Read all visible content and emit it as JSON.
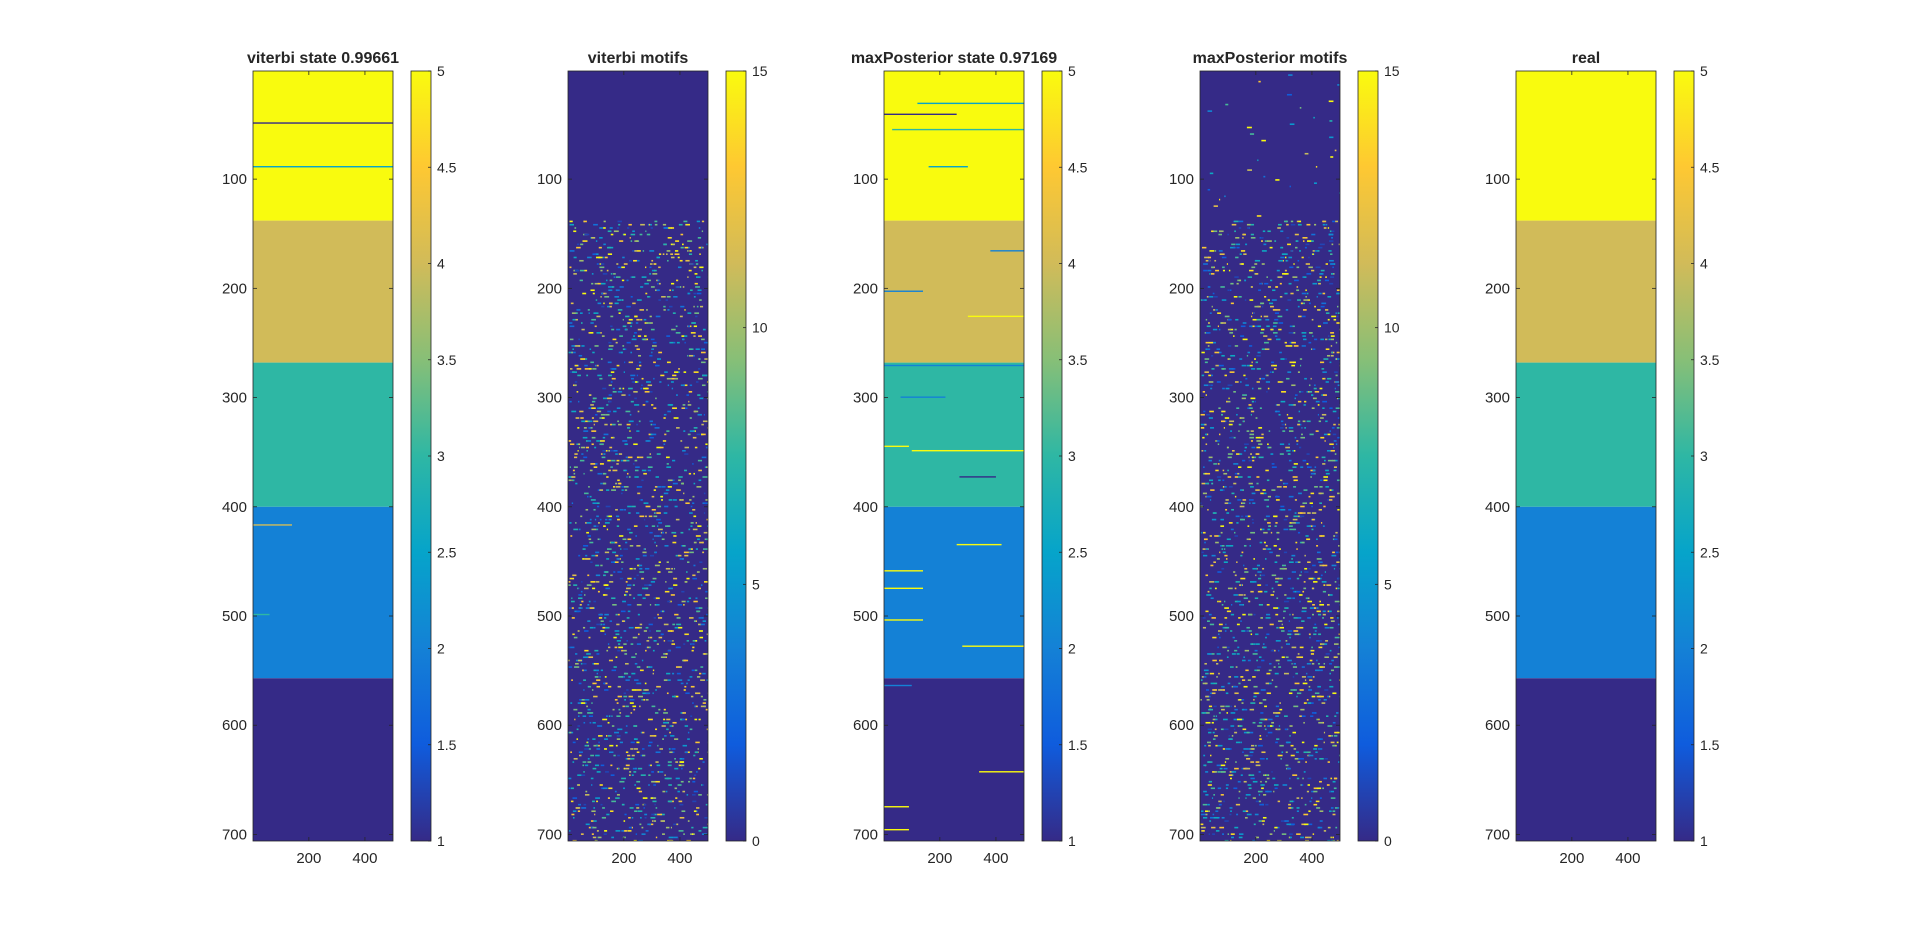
{
  "figure": {
    "background": "#ffffff"
  },
  "colormap": {
    "name": "parula",
    "stops": [
      "#352a87",
      "#0f5cdd",
      "#1481d6",
      "#06a4ca",
      "#2eb7a4",
      "#87bf77",
      "#d1bb59",
      "#fec832",
      "#f9fb0e"
    ]
  },
  "chart_data": [
    {
      "type": "heatmap",
      "title": "viterbi state 0.99661",
      "xlabel": "",
      "ylabel": "",
      "xlim": [
        1,
        500
      ],
      "ylim": [
        1,
        706
      ],
      "xticks": [
        200,
        400
      ],
      "yticks": [
        100,
        200,
        300,
        400,
        500,
        600,
        700
      ],
      "clim": [
        1,
        5
      ],
      "colorbar_ticks": [
        1,
        1.5,
        2,
        2.5,
        3,
        3.5,
        4,
        4.5,
        5
      ],
      "colorbar_ticklabels": [
        "1",
        "1.5",
        "2",
        "2.5",
        "3",
        "3.5",
        "4",
        "4.5",
        "5"
      ],
      "bands": [
        {
          "rows": [
            1,
            138
          ],
          "value": 5
        },
        {
          "rows": [
            138,
            268
          ],
          "value": 4
        },
        {
          "rows": [
            268,
            400
          ],
          "value": 3
        },
        {
          "rows": [
            400,
            557
          ],
          "value": 2
        },
        {
          "rows": [
            557,
            706
          ],
          "value": 1
        }
      ],
      "streaks": [
        {
          "row": 48,
          "x": [
            1,
            500
          ],
          "value": 1
        },
        {
          "row": 88,
          "x": [
            1,
            500
          ],
          "value": 2.5
        },
        {
          "row": 416,
          "x": [
            1,
            140
          ],
          "value": 4
        },
        {
          "row": 498,
          "x": [
            1,
            60
          ],
          "value": 3
        }
      ]
    },
    {
      "type": "heatmap",
      "title": "viterbi motifs",
      "xlabel": "",
      "ylabel": "",
      "xlim": [
        1,
        500
      ],
      "ylim": [
        1,
        706
      ],
      "xticks": [
        200,
        400
      ],
      "yticks": [
        100,
        200,
        300,
        400,
        500,
        600,
        700
      ],
      "clim": [
        0,
        15
      ],
      "colorbar_ticks": [
        0,
        5,
        10,
        15
      ],
      "colorbar_ticklabels": [
        "0",
        "5",
        "10",
        "15"
      ],
      "background_value": 0,
      "sparse_region": {
        "rows": [
          1,
          138
        ],
        "density": 0.01
      },
      "dense_region": {
        "rows": [
          138,
          706
        ],
        "density": 0.45
      }
    },
    {
      "type": "heatmap",
      "title": "maxPosterior state 0.97169",
      "xlabel": "",
      "ylabel": "",
      "xlim": [
        1,
        500
      ],
      "ylim": [
        1,
        706
      ],
      "xticks": [
        200,
        400
      ],
      "yticks": [
        100,
        200,
        300,
        400,
        500,
        600,
        700
      ],
      "clim": [
        1,
        5
      ],
      "colorbar_ticks": [
        1,
        1.5,
        2,
        2.5,
        3,
        3.5,
        4,
        4.5,
        5
      ],
      "colorbar_ticklabels": [
        "1",
        "1.5",
        "2",
        "2.5",
        "3",
        "3.5",
        "4",
        "4.5",
        "5"
      ],
      "bands": [
        {
          "rows": [
            1,
            138
          ],
          "value": 5
        },
        {
          "rows": [
            138,
            268
          ],
          "value": 4
        },
        {
          "rows": [
            268,
            400
          ],
          "value": 3
        },
        {
          "rows": [
            400,
            557
          ],
          "value": 2
        },
        {
          "rows": [
            557,
            706
          ],
          "value": 1
        }
      ],
      "streaks": [
        {
          "row": 30,
          "x": [
            120,
            500
          ],
          "value": 2.5
        },
        {
          "row": 40,
          "x": [
            1,
            260
          ],
          "value": 1
        },
        {
          "row": 54,
          "x": [
            30,
            500
          ],
          "value": 3
        },
        {
          "row": 88,
          "x": [
            160,
            300
          ],
          "value": 2.5
        },
        {
          "row": 165,
          "x": [
            380,
            500
          ],
          "value": 2
        },
        {
          "row": 202,
          "x": [
            1,
            140
          ],
          "value": 2
        },
        {
          "row": 225,
          "x": [
            300,
            500
          ],
          "value": 5
        },
        {
          "row": 270,
          "x": [
            1,
            500
          ],
          "value": 2
        },
        {
          "row": 299,
          "x": [
            60,
            220
          ],
          "value": 2
        },
        {
          "row": 344,
          "x": [
            1,
            90
          ],
          "value": 5
        },
        {
          "row": 348,
          "x": [
            100,
            500
          ],
          "value": 5
        },
        {
          "row": 372,
          "x": [
            270,
            400
          ],
          "value": 1
        },
        {
          "row": 434,
          "x": [
            260,
            420
          ],
          "value": 5
        },
        {
          "row": 458,
          "x": [
            1,
            140
          ],
          "value": 5
        },
        {
          "row": 474,
          "x": [
            1,
            140
          ],
          "value": 5
        },
        {
          "row": 503,
          "x": [
            1,
            140
          ],
          "value": 5
        },
        {
          "row": 527,
          "x": [
            280,
            500
          ],
          "value": 5
        },
        {
          "row": 563,
          "x": [
            1,
            100
          ],
          "value": 2
        },
        {
          "row": 642,
          "x": [
            340,
            500
          ],
          "value": 5
        },
        {
          "row": 674,
          "x": [
            1,
            90
          ],
          "value": 5
        },
        {
          "row": 695,
          "x": [
            1,
            90
          ],
          "value": 5
        }
      ]
    },
    {
      "type": "heatmap",
      "title": "maxPosterior motifs",
      "xlabel": "",
      "ylabel": "",
      "xlim": [
        1,
        500
      ],
      "ylim": [
        1,
        706
      ],
      "xticks": [
        200,
        400
      ],
      "yticks": [
        100,
        200,
        300,
        400,
        500,
        600,
        700
      ],
      "clim": [
        0,
        15
      ],
      "colorbar_ticks": [
        0,
        5,
        10,
        15
      ],
      "colorbar_ticklabels": [
        "0",
        "5",
        "10",
        "15"
      ],
      "background_value": 0,
      "sparse_region": {
        "rows": [
          1,
          138
        ],
        "density": 0.02
      },
      "dense_region": {
        "rows": [
          138,
          706
        ],
        "density": 0.45
      }
    },
    {
      "type": "heatmap",
      "title": "real",
      "xlabel": "",
      "ylabel": "",
      "xlim": [
        1,
        500
      ],
      "ylim": [
        1,
        706
      ],
      "xticks": [
        200,
        400
      ],
      "yticks": [
        100,
        200,
        300,
        400,
        500,
        600,
        700
      ],
      "clim": [
        1,
        5
      ],
      "colorbar_ticks": [
        1,
        1.5,
        2,
        2.5,
        3,
        3.5,
        4,
        4.5,
        5
      ],
      "colorbar_ticklabels": [
        "1",
        "1.5",
        "2",
        "2.5",
        "3",
        "3.5",
        "4",
        "4.5",
        "5"
      ],
      "bands": [
        {
          "rows": [
            1,
            138
          ],
          "value": 5
        },
        {
          "rows": [
            138,
            268
          ],
          "value": 4
        },
        {
          "rows": [
            268,
            400
          ],
          "value": 3
        },
        {
          "rows": [
            400,
            557
          ],
          "value": 2
        },
        {
          "rows": [
            557,
            706
          ],
          "value": 1
        }
      ],
      "streaks": []
    }
  ]
}
